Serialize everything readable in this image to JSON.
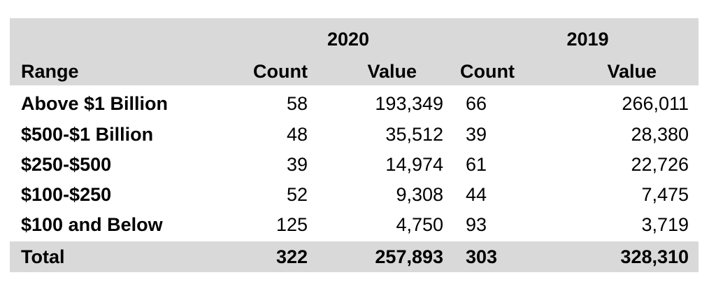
{
  "table": {
    "years": [
      "2020",
      "2019"
    ],
    "headers": {
      "range": "Range",
      "count_2020": "Count",
      "value_2020": "Value",
      "count_2019": "Count",
      "value_2019": "Value"
    },
    "rows": [
      {
        "range": "Above $1 Billion",
        "count_2020": "58",
        "value_2020": "193,349",
        "count_2019": "66",
        "value_2019": "266,011"
      },
      {
        "range": "$500-$1 Billion",
        "count_2020": "48",
        "value_2020": "35,512",
        "count_2019": "39",
        "value_2019": "28,380"
      },
      {
        "range": "$250-$500",
        "count_2020": "39",
        "value_2020": "14,974",
        "count_2019": "61",
        "value_2019": "22,726"
      },
      {
        "range": "$100-$250",
        "count_2020": "52",
        "value_2020": "9,308",
        "count_2019": "44",
        "value_2019": "7,475"
      },
      {
        "range": "$100 and Below",
        "count_2020": "125",
        "value_2020": "4,750",
        "count_2019": "93",
        "value_2019": "3,719"
      }
    ],
    "total": {
      "range": "Total",
      "count_2020": "322",
      "value_2020": "257,893",
      "count_2019": "303",
      "value_2019": "328,310"
    },
    "colors": {
      "header_bg": "#d9d9d9",
      "text": "#000000"
    }
  }
}
